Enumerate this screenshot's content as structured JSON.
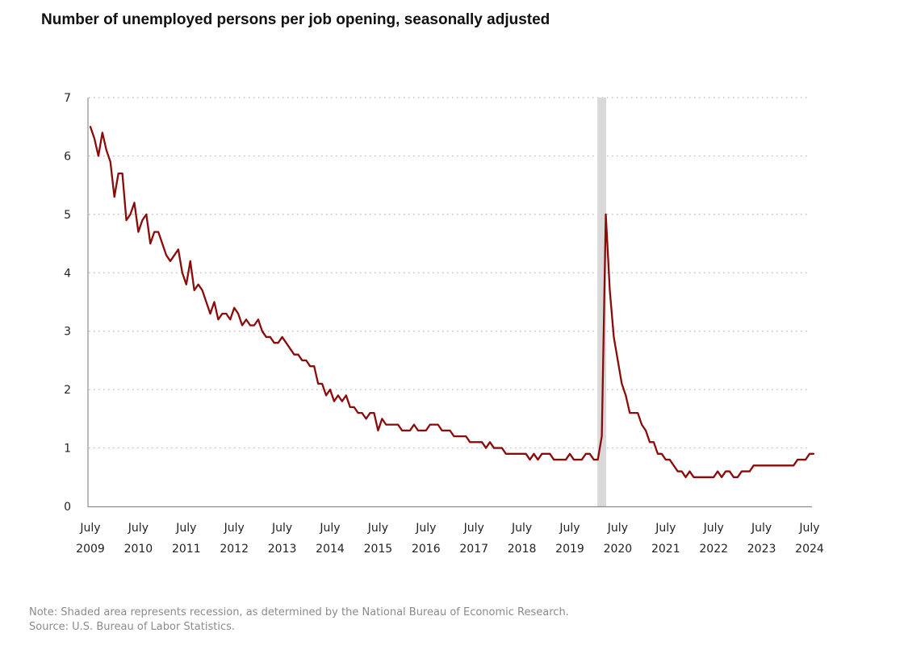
{
  "chart_data": {
    "type": "line",
    "title": "Number of unemployed persons per job opening, seasonally adjusted",
    "xlabel": "",
    "ylabel": "",
    "ylim": [
      0,
      7
    ],
    "yticks": [
      0,
      1,
      2,
      3,
      4,
      5,
      6,
      7
    ],
    "grid": true,
    "x_start": "2009-07",
    "x_end": "2024-07",
    "x_ticks": [
      {
        "month": "July",
        "year": "2009"
      },
      {
        "month": "July",
        "year": "2010"
      },
      {
        "month": "July",
        "year": "2011"
      },
      {
        "month": "July",
        "year": "2012"
      },
      {
        "month": "July",
        "year": "2013"
      },
      {
        "month": "July",
        "year": "2014"
      },
      {
        "month": "July",
        "year": "2015"
      },
      {
        "month": "July",
        "year": "2016"
      },
      {
        "month": "July",
        "year": "2017"
      },
      {
        "month": "July",
        "year": "2018"
      },
      {
        "month": "July",
        "year": "2019"
      },
      {
        "month": "July",
        "year": "2020"
      },
      {
        "month": "July",
        "year": "2021"
      },
      {
        "month": "July",
        "year": "2022"
      },
      {
        "month": "July",
        "year": "2023"
      },
      {
        "month": "July",
        "year": "2024"
      }
    ],
    "recession": {
      "start": "2020-02",
      "end": "2020-04"
    },
    "series": [
      {
        "color": "#8b0a0a",
        "start": "2009-07",
        "values": [
          6.5,
          6.3,
          6.0,
          6.4,
          6.1,
          5.9,
          5.3,
          5.7,
          5.7,
          4.9,
          5.0,
          5.2,
          4.7,
          4.9,
          5.0,
          4.5,
          4.7,
          4.7,
          4.5,
          4.3,
          4.2,
          4.3,
          4.4,
          4.0,
          3.8,
          4.2,
          3.7,
          3.8,
          3.7,
          3.5,
          3.3,
          3.5,
          3.2,
          3.3,
          3.3,
          3.2,
          3.4,
          3.3,
          3.1,
          3.2,
          3.1,
          3.1,
          3.2,
          3.0,
          2.9,
          2.9,
          2.8,
          2.8,
          2.9,
          2.8,
          2.7,
          2.6,
          2.6,
          2.5,
          2.5,
          2.4,
          2.4,
          2.1,
          2.1,
          1.9,
          2.0,
          1.8,
          1.9,
          1.8,
          1.9,
          1.7,
          1.7,
          1.6,
          1.6,
          1.5,
          1.6,
          1.6,
          1.3,
          1.5,
          1.4,
          1.4,
          1.4,
          1.4,
          1.3,
          1.3,
          1.3,
          1.4,
          1.3,
          1.3,
          1.3,
          1.4,
          1.4,
          1.4,
          1.3,
          1.3,
          1.3,
          1.2,
          1.2,
          1.2,
          1.2,
          1.1,
          1.1,
          1.1,
          1.1,
          1.0,
          1.1,
          1.0,
          1.0,
          1.0,
          0.9,
          0.9,
          0.9,
          0.9,
          0.9,
          0.9,
          0.8,
          0.9,
          0.8,
          0.9,
          0.9,
          0.9,
          0.8,
          0.8,
          0.8,
          0.8,
          0.9,
          0.8,
          0.8,
          0.8,
          0.9,
          0.9,
          0.8,
          0.8,
          1.2,
          5.0,
          3.7,
          2.9,
          2.5,
          2.1,
          1.9,
          1.6,
          1.6,
          1.6,
          1.4,
          1.3,
          1.1,
          1.1,
          0.9,
          0.9,
          0.8,
          0.8,
          0.7,
          0.6,
          0.6,
          0.5,
          0.6,
          0.5,
          0.5,
          0.5,
          0.5,
          0.5,
          0.5,
          0.6,
          0.5,
          0.6,
          0.6,
          0.5,
          0.5,
          0.6,
          0.6,
          0.6,
          0.7,
          0.7,
          0.7,
          0.7,
          0.7,
          0.7,
          0.7,
          0.7,
          0.7,
          0.7,
          0.7,
          0.8,
          0.8,
          0.8,
          0.9,
          0.9
        ]
      }
    ]
  },
  "notes": {
    "line1": "Note: Shaded area represents recession, as determined by the National Bureau of Economic Research.",
    "line2": "Source: U.S. Bureau of Labor Statistics."
  }
}
